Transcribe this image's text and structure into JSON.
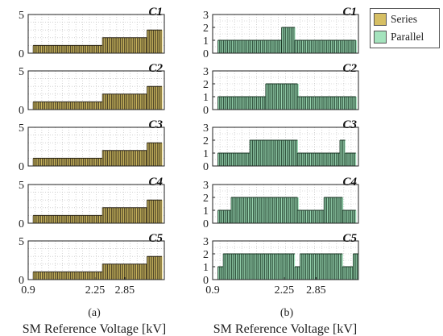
{
  "legend": {
    "series_label": "Series",
    "parallel_label": "Parallel"
  },
  "colors": {
    "series": "#f0d970",
    "series_dark": "#2b2416",
    "parallel": "#a4e3bd",
    "parallel_dark": "#173322",
    "grid": "#b9b9b9",
    "axis": "#222222"
  },
  "figure": {
    "caption_a": "(a)",
    "caption_b": "(b)",
    "xlabel_a": "SM Reference Voltage [kV]",
    "xlabel_b": "SM Reference Voltage [kV]"
  },
  "chart_data": [
    {
      "panel": "a",
      "type": "bar",
      "title": "C1",
      "series": "Series",
      "ylim": [
        0,
        5
      ],
      "yticks": [
        0,
        5
      ],
      "xlim": [
        0.9,
        3.65
      ],
      "xticks": [],
      "grid": true,
      "segments": [
        {
          "x0": 1.0,
          "x1": 2.4,
          "value": 1
        },
        {
          "x0": 2.4,
          "x1": 3.3,
          "value": 2
        },
        {
          "x0": 3.3,
          "x1": 3.6,
          "value": 3
        }
      ]
    },
    {
      "panel": "a",
      "type": "bar",
      "title": "C2",
      "series": "Series",
      "ylim": [
        0,
        5
      ],
      "yticks": [
        0,
        5
      ],
      "xlim": [
        0.9,
        3.65
      ],
      "xticks": [],
      "grid": true,
      "segments": [
        {
          "x0": 1.0,
          "x1": 2.4,
          "value": 1
        },
        {
          "x0": 2.4,
          "x1": 3.3,
          "value": 2
        },
        {
          "x0": 3.3,
          "x1": 3.6,
          "value": 3
        }
      ]
    },
    {
      "panel": "a",
      "type": "bar",
      "title": "C3",
      "series": "Series",
      "ylim": [
        0,
        5
      ],
      "yticks": [
        0,
        5
      ],
      "xlim": [
        0.9,
        3.65
      ],
      "xticks": [],
      "grid": true,
      "segments": [
        {
          "x0": 1.0,
          "x1": 2.4,
          "value": 1
        },
        {
          "x0": 2.4,
          "x1": 3.3,
          "value": 2
        },
        {
          "x0": 3.3,
          "x1": 3.6,
          "value": 3
        }
      ]
    },
    {
      "panel": "a",
      "type": "bar",
      "title": "C4",
      "series": "Series",
      "ylim": [
        0,
        5
      ],
      "yticks": [
        0,
        5
      ],
      "xlim": [
        0.9,
        3.65
      ],
      "xticks": [],
      "grid": true,
      "segments": [
        {
          "x0": 1.0,
          "x1": 2.4,
          "value": 1
        },
        {
          "x0": 2.4,
          "x1": 3.3,
          "value": 2
        },
        {
          "x0": 3.3,
          "x1": 3.6,
          "value": 3
        }
      ]
    },
    {
      "panel": "a",
      "type": "bar",
      "title": "C5",
      "series": "Series",
      "ylim": [
        0,
        5
      ],
      "yticks": [
        0,
        5
      ],
      "xlim": [
        0.9,
        3.65
      ],
      "xticks": [
        0.9,
        2.25,
        2.85
      ],
      "xticklabels": [
        "0.9",
        "2.25",
        "2.85"
      ],
      "grid": true,
      "segments": [
        {
          "x0": 1.0,
          "x1": 2.4,
          "value": 1
        },
        {
          "x0": 2.4,
          "x1": 3.3,
          "value": 2
        },
        {
          "x0": 3.3,
          "x1": 3.6,
          "value": 3
        }
      ]
    },
    {
      "panel": "b",
      "type": "bar",
      "title": "C1",
      "series": "Parallel",
      "ylim": [
        0,
        3
      ],
      "yticks": [
        0,
        1,
        2,
        3
      ],
      "xlim": [
        0.9,
        3.65
      ],
      "xticks": [],
      "grid": true,
      "segments": [
        {
          "x0": 1.0,
          "x1": 2.2,
          "value": 1
        },
        {
          "x0": 2.2,
          "x1": 2.45,
          "value": 2
        },
        {
          "x0": 2.45,
          "x1": 3.6,
          "value": 1
        }
      ]
    },
    {
      "panel": "b",
      "type": "bar",
      "title": "C2",
      "series": "Parallel",
      "ylim": [
        0,
        3
      ],
      "yticks": [
        0,
        1,
        2,
        3
      ],
      "xlim": [
        0.9,
        3.65
      ],
      "xticks": [],
      "grid": true,
      "segments": [
        {
          "x0": 1.0,
          "x1": 1.9,
          "value": 1
        },
        {
          "x0": 1.9,
          "x1": 2.5,
          "value": 2
        },
        {
          "x0": 2.5,
          "x1": 3.6,
          "value": 1
        }
      ]
    },
    {
      "panel": "b",
      "type": "bar",
      "title": "C3",
      "series": "Parallel",
      "ylim": [
        0,
        3
      ],
      "yticks": [
        0,
        1,
        2,
        3
      ],
      "xlim": [
        0.9,
        3.65
      ],
      "xticks": [],
      "grid": true,
      "segments": [
        {
          "x0": 1.0,
          "x1": 1.6,
          "value": 1
        },
        {
          "x0": 1.6,
          "x1": 2.5,
          "value": 2
        },
        {
          "x0": 2.5,
          "x1": 3.3,
          "value": 1
        },
        {
          "x0": 3.3,
          "x1": 3.4,
          "value": 2
        },
        {
          "x0": 3.4,
          "x1": 3.6,
          "value": 1
        }
      ]
    },
    {
      "panel": "b",
      "type": "bar",
      "title": "C4",
      "series": "Parallel",
      "ylim": [
        0,
        3
      ],
      "yticks": [
        0,
        1,
        2,
        3
      ],
      "xlim": [
        0.9,
        3.65
      ],
      "xticks": [],
      "grid": true,
      "segments": [
        {
          "x0": 1.0,
          "x1": 1.25,
          "value": 1
        },
        {
          "x0": 1.25,
          "x1": 2.5,
          "value": 2
        },
        {
          "x0": 2.5,
          "x1": 3.0,
          "value": 1
        },
        {
          "x0": 3.0,
          "x1": 3.35,
          "value": 2
        },
        {
          "x0": 3.35,
          "x1": 3.6,
          "value": 1
        }
      ]
    },
    {
      "panel": "b",
      "type": "bar",
      "title": "C5",
      "series": "Parallel",
      "ylim": [
        0,
        3
      ],
      "yticks": [
        0,
        1,
        2,
        3
      ],
      "xlim": [
        0.9,
        3.65
      ],
      "xticks": [
        0.9,
        2.25,
        2.85
      ],
      "xticklabels": [
        "0.9",
        "2.25",
        "2.85"
      ],
      "grid": true,
      "segments": [
        {
          "x0": 1.0,
          "x1": 1.1,
          "value": 1
        },
        {
          "x0": 1.1,
          "x1": 2.45,
          "value": 2
        },
        {
          "x0": 2.45,
          "x1": 2.55,
          "value": 1
        },
        {
          "x0": 2.55,
          "x1": 3.35,
          "value": 2
        },
        {
          "x0": 3.35,
          "x1": 3.55,
          "value": 1
        },
        {
          "x0": 3.55,
          "x1": 3.65,
          "value": 2
        }
      ]
    }
  ]
}
